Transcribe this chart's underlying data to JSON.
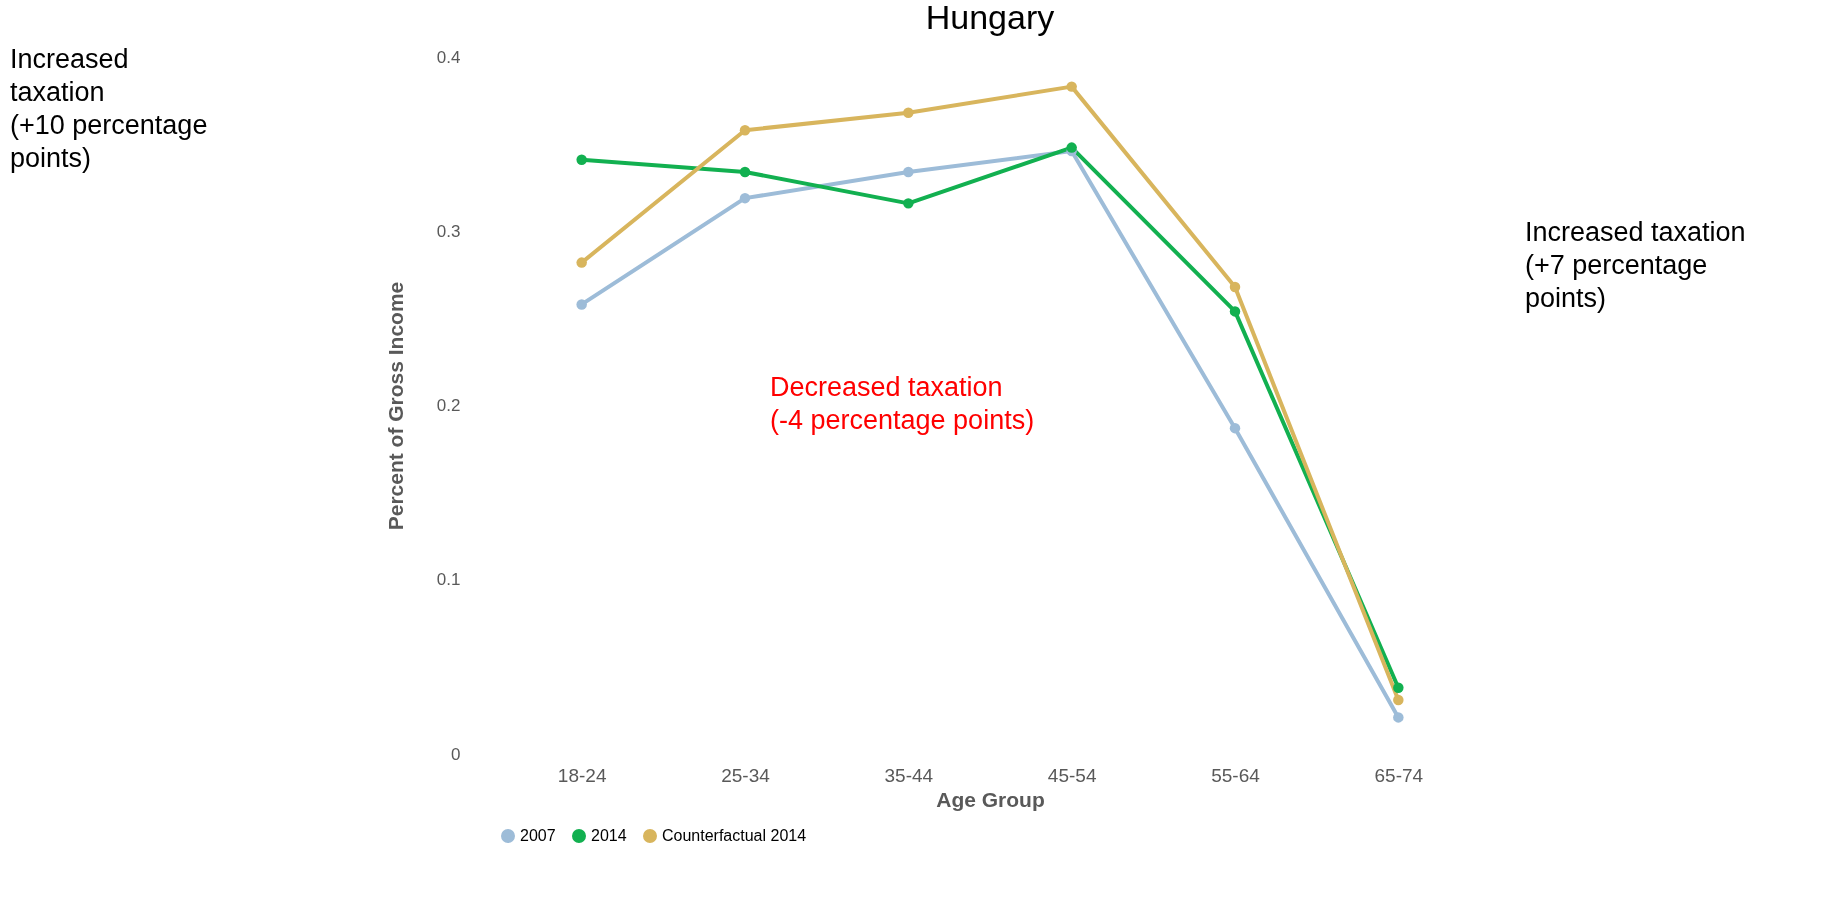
{
  "chart_data": {
    "type": "line",
    "title": "Hungary",
    "xlabel": "Age Group",
    "ylabel": "Percent of Gross Income",
    "categories": [
      "18-24",
      "25-34",
      "35-44",
      "45-54",
      "55-64",
      "65-74"
    ],
    "series": [
      {
        "name": "2007",
        "color": "#9dbcd8",
        "values": [
          0.258,
          0.319,
          0.334,
          0.346,
          0.187,
          0.021
        ]
      },
      {
        "name": "2014",
        "color": "#12b050",
        "values": [
          0.341,
          0.334,
          0.316,
          0.348,
          0.254,
          0.038
        ]
      },
      {
        "name": "Counterfactual 2014",
        "color": "#d8b55d",
        "values": [
          0.282,
          0.358,
          0.368,
          0.383,
          0.268,
          0.031
        ]
      }
    ],
    "ylim": [
      0,
      0.4
    ],
    "yticks": [
      {
        "value": 0,
        "label": "0"
      },
      {
        "value": 0.1,
        "label": "0.1"
      },
      {
        "value": 0.2,
        "label": "0.2"
      },
      {
        "value": 0.3,
        "label": "0.3"
      },
      {
        "value": 0.4,
        "label": "0.4"
      }
    ],
    "grid": false,
    "legend": "bottom",
    "marker": "circle",
    "line_style": "solid",
    "annotations": [
      "Increased\ntaxation\n(+10 percentage\npoints)",
      "Decreased taxation\n(-4 percentage points)",
      "Increased taxation\n(+7 percentage\npoints)"
    ]
  }
}
